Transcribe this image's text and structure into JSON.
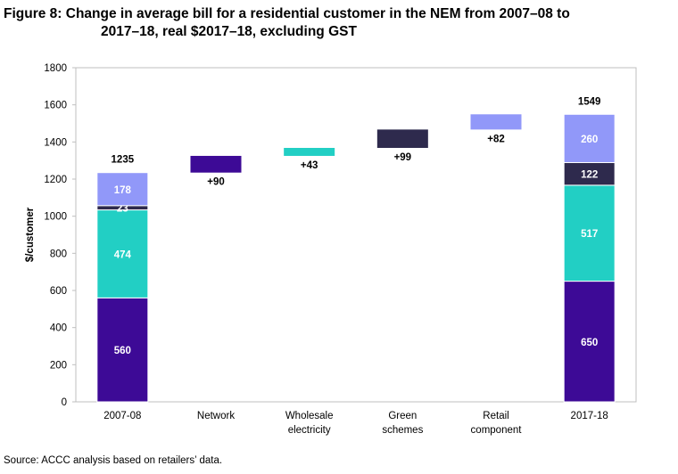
{
  "figure": {
    "title_line1": "Figure 8: Change in average bill for a residential customer in the NEM from 2007–08 to",
    "title_line2": "2017–18, real $2017–18, excluding GST",
    "source": "Source:   ACCC analysis based on retailers’ data."
  },
  "colors": {
    "network": "#3d0a96",
    "wholesale": "#22cfc4",
    "green": "#2e2a4d",
    "retail": "#9198f9"
  },
  "chart_data": {
    "type": "bar",
    "subtype": "waterfall",
    "ylabel": "$/customer",
    "ylim": [
      0,
      1800
    ],
    "yticks": [
      0,
      200,
      400,
      600,
      800,
      1000,
      1200,
      1400,
      1600,
      1800
    ],
    "categories": [
      {
        "lines": [
          "2007-08"
        ]
      },
      {
        "lines": [
          "Network"
        ]
      },
      {
        "lines": [
          "Wholesale",
          "electricity"
        ]
      },
      {
        "lines": [
          "Green",
          "schemes"
        ]
      },
      {
        "lines": [
          "Retail",
          "component"
        ]
      },
      {
        "lines": [
          "2017-18"
        ]
      }
    ],
    "stacks": [
      {
        "category_index": 0,
        "total": 1235,
        "total_label": "1235",
        "segments": [
          {
            "component": "network",
            "value": 560,
            "label": "560"
          },
          {
            "component": "wholesale",
            "value": 474,
            "label": "474"
          },
          {
            "component": "green",
            "value": 23,
            "label": "23"
          },
          {
            "component": "retail",
            "value": 178,
            "label": "178"
          }
        ]
      },
      {
        "category_index": 5,
        "total": 1549,
        "total_label": "1549",
        "segments": [
          {
            "component": "network",
            "value": 650,
            "label": "650"
          },
          {
            "component": "wholesale",
            "value": 517,
            "label": "517"
          },
          {
            "component": "green",
            "value": 122,
            "label": "122"
          },
          {
            "component": "retail",
            "value": 260,
            "label": "260"
          }
        ]
      }
    ],
    "changes": [
      {
        "category_index": 1,
        "component": "network",
        "from": 1235,
        "to": 1325,
        "value": 90,
        "label": "+90"
      },
      {
        "category_index": 2,
        "component": "wholesale",
        "from": 1325,
        "to": 1368,
        "value": 43,
        "label": "+43"
      },
      {
        "category_index": 3,
        "component": "green",
        "from": 1368,
        "to": 1467,
        "value": 99,
        "label": "+99"
      },
      {
        "category_index": 4,
        "component": "retail",
        "from": 1467,
        "to": 1549,
        "value": 82,
        "label": "+82"
      }
    ],
    "grid": false,
    "legend": "none"
  }
}
